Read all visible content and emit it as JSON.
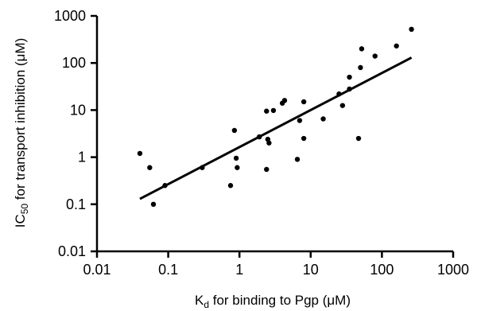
{
  "chart_data": {
    "type": "scatter",
    "title": "",
    "xlabel": {
      "main": "K",
      "sub": "d",
      "rest": " for binding to Pgp (μM)"
    },
    "ylabel": {
      "main": "IC",
      "sub": "50",
      "rest": " for transport inhibition (μM)"
    },
    "xscale": "log",
    "yscale": "log",
    "xlim": [
      0.01,
      1000
    ],
    "ylim": [
      0.01,
      1000
    ],
    "xticks": [
      0.01,
      0.1,
      1,
      10,
      100,
      1000
    ],
    "yticks": [
      0.01,
      0.1,
      1,
      10,
      100,
      1000
    ],
    "xtick_labels": [
      "0.01",
      "0.1",
      "1",
      "10",
      "100",
      "1000"
    ],
    "ytick_labels": [
      "0.01",
      "0.1",
      "1",
      "10",
      "100",
      "1000"
    ],
    "grid": false,
    "series": [
      {
        "points": [
          [
            0.04,
            1.2
          ],
          [
            0.055,
            0.6
          ],
          [
            0.062,
            0.1
          ],
          [
            0.09,
            0.25
          ],
          [
            0.3,
            0.6
          ],
          [
            0.75,
            0.25
          ],
          [
            0.85,
            3.7
          ],
          [
            0.9,
            0.95
          ],
          [
            0.93,
            0.6
          ],
          [
            1.9,
            2.7
          ],
          [
            2.4,
            0.55
          ],
          [
            2.4,
            9.5
          ],
          [
            2.5,
            2.4
          ],
          [
            2.6,
            2.0
          ],
          [
            3.0,
            9.8
          ],
          [
            4.0,
            14
          ],
          [
            4.3,
            16
          ],
          [
            6.5,
            0.9
          ],
          [
            7.0,
            6.0
          ],
          [
            8.0,
            2.5
          ],
          [
            8.0,
            15
          ],
          [
            15,
            6.5
          ],
          [
            25,
            22
          ],
          [
            28,
            12.5
          ],
          [
            35,
            28
          ],
          [
            35,
            50
          ],
          [
            47,
            2.5
          ],
          [
            50,
            80
          ],
          [
            52,
            200
          ],
          [
            80,
            140
          ],
          [
            160,
            230
          ],
          [
            260,
            520
          ]
        ]
      }
    ],
    "fit_line": {
      "from": [
        0.04,
        0.13
      ],
      "to": [
        260,
        130
      ]
    }
  }
}
